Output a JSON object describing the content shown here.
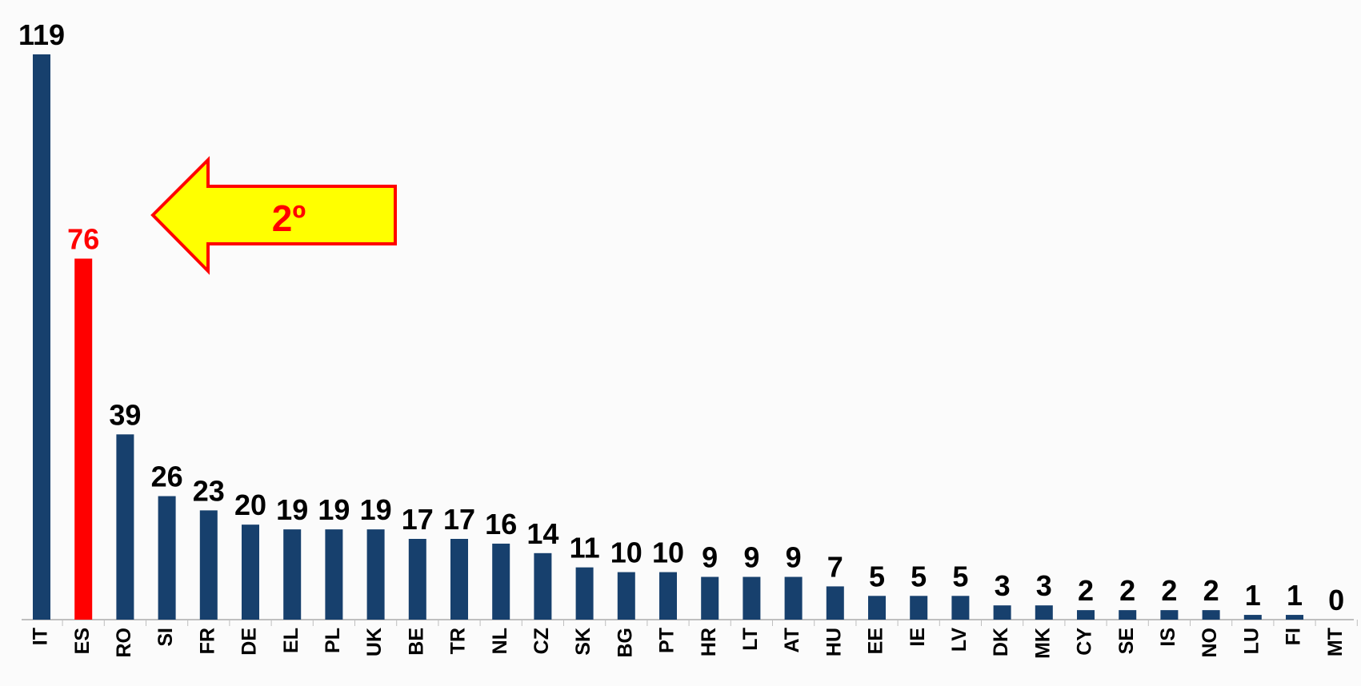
{
  "chart_data": {
    "type": "bar",
    "categories": [
      "IT",
      "ES",
      "RO",
      "SI",
      "FR",
      "DE",
      "EL",
      "PL",
      "UK",
      "BE",
      "TR",
      "NL",
      "CZ",
      "SK",
      "BG",
      "PT",
      "HR",
      "LT",
      "AT",
      "HU",
      "EE",
      "IE",
      "LV",
      "DK",
      "MK",
      "CY",
      "SE",
      "IS",
      "NO",
      "LU",
      "FI",
      "MT"
    ],
    "values": [
      119,
      76,
      39,
      26,
      23,
      20,
      19,
      19,
      19,
      17,
      17,
      16,
      14,
      11,
      10,
      10,
      9,
      9,
      9,
      7,
      5,
      5,
      5,
      3,
      3,
      2,
      2,
      2,
      2,
      1,
      1,
      0
    ],
    "colors": [
      "#17406d",
      "#ff0000",
      "#17406d",
      "#17406d",
      "#17406d",
      "#17406d",
      "#17406d",
      "#17406d",
      "#17406d",
      "#17406d",
      "#17406d",
      "#17406d",
      "#17406d",
      "#17406d",
      "#17406d",
      "#17406d",
      "#17406d",
      "#17406d",
      "#17406d",
      "#17406d",
      "#17406d",
      "#17406d",
      "#17406d",
      "#17406d",
      "#17406d",
      "#17406d",
      "#17406d",
      "#17406d",
      "#17406d",
      "#17406d",
      "#17406d",
      "#17406d"
    ],
    "label_colors": [
      "#000000",
      "#ff0000",
      "#000000",
      "#000000",
      "#000000",
      "#000000",
      "#000000",
      "#000000",
      "#000000",
      "#000000",
      "#000000",
      "#000000",
      "#000000",
      "#000000",
      "#000000",
      "#000000",
      "#000000",
      "#000000",
      "#000000",
      "#000000",
      "#000000",
      "#000000",
      "#000000",
      "#000000",
      "#000000",
      "#000000",
      "#000000",
      "#000000",
      "#000000",
      "#000000",
      "#000000",
      "#000000"
    ],
    "annotation": "2º"
  }
}
